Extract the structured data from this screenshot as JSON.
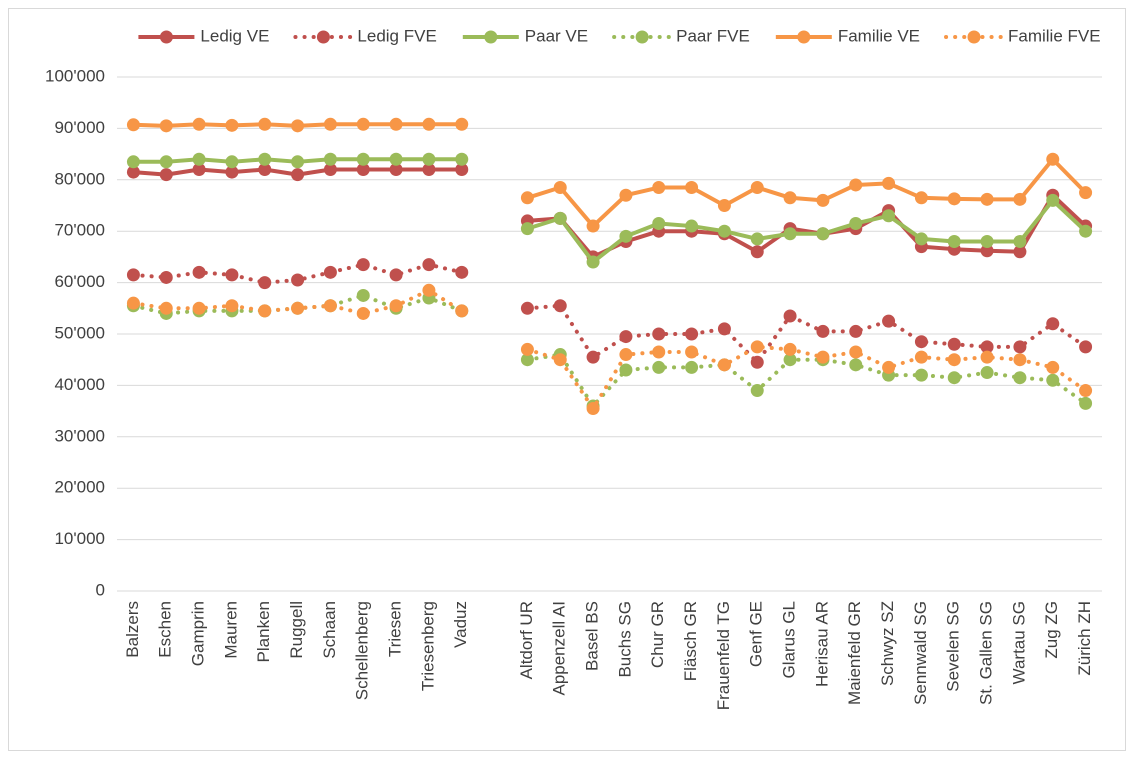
{
  "chart_data": {
    "type": "line",
    "categories": [
      "Balzers",
      "Eschen",
      "Gamprin",
      "Mauren",
      "Planken",
      "Ruggell",
      "Schaan",
      "Schellenberg",
      "Triesen",
      "Triesenberg",
      "Vaduz",
      null,
      "Altdorf UR",
      "Appenzell AI",
      "Basel BS",
      "Buchs SG",
      "Chur GR",
      "Fläsch GR",
      "Frauenfeld TG",
      "Genf GE",
      "Glarus GL",
      "Herisau AR",
      "Maienfeld GR",
      "Schwyz SZ",
      "Sennwald SG",
      "Sevelen SG",
      "St. Gallen SG",
      "Wartau SG",
      "Zug ZG",
      "Zürich ZH"
    ],
    "series": [
      {
        "name": "Ledig VE",
        "color": "#c0504d",
        "line_style": "solid",
        "values": [
          81500,
          81000,
          82000,
          81500,
          82000,
          81000,
          82000,
          82000,
          82000,
          82000,
          82000,
          null,
          72000,
          72500,
          65000,
          68000,
          70000,
          70000,
          69500,
          66000,
          70500,
          69500,
          70500,
          74000,
          67000,
          66500,
          66200,
          66000,
          77000,
          71000
        ]
      },
      {
        "name": "Ledig FVE",
        "color": "#c0504d",
        "line_style": "dotted",
        "values": [
          61500,
          61000,
          62000,
          61500,
          60000,
          60500,
          62000,
          63500,
          61500,
          63500,
          62000,
          null,
          55000,
          55500,
          45500,
          49500,
          50000,
          50000,
          51000,
          44500,
          53500,
          50500,
          50500,
          52500,
          48500,
          48000,
          47500,
          47500,
          52000,
          47500
        ]
      },
      {
        "name": "Paar VE",
        "color": "#9bbb59",
        "line_style": "solid",
        "values": [
          83500,
          83500,
          84000,
          83500,
          84000,
          83500,
          84000,
          84000,
          84000,
          84000,
          84000,
          null,
          70500,
          72500,
          64000,
          69000,
          71500,
          71000,
          70000,
          68500,
          69500,
          69500,
          71500,
          73000,
          68500,
          68000,
          68000,
          68000,
          76000,
          70000
        ]
      },
      {
        "name": "Paar FVE",
        "color": "#9bbb59",
        "line_style": "dotted",
        "values": [
          55500,
          54000,
          54500,
          54500,
          54500,
          55000,
          55500,
          57500,
          55000,
          57000,
          54500,
          null,
          45000,
          46000,
          36000,
          43000,
          43500,
          43500,
          44000,
          39000,
          45000,
          45000,
          44000,
          42000,
          42000,
          41500,
          42500,
          41500,
          41000,
          36500
        ]
      },
      {
        "name": "Familie VE",
        "color": "#f79646",
        "line_style": "solid",
        "values": [
          90700,
          90500,
          90800,
          90600,
          90800,
          90500,
          90800,
          90800,
          90800,
          90800,
          90800,
          null,
          76500,
          78500,
          71000,
          77000,
          78500,
          78500,
          75000,
          78500,
          76500,
          76000,
          79000,
          79300,
          76500,
          76300,
          76200,
          76200,
          84000,
          77500
        ]
      },
      {
        "name": "Familie FVE",
        "color": "#f79646",
        "line_style": "dotted",
        "values": [
          56000,
          55000,
          55000,
          55500,
          54500,
          55000,
          55500,
          54000,
          55500,
          58500,
          54500,
          null,
          47000,
          45000,
          35500,
          46000,
          46500,
          46500,
          44000,
          47500,
          47000,
          45500,
          46500,
          43500,
          45500,
          45000,
          45500,
          45000,
          43500,
          39000
        ]
      }
    ],
    "ylim": [
      0,
      100000
    ],
    "yticks": [
      0,
      {
        "value": 10000,
        "label": "10'000"
      },
      {
        "value": 20000,
        "label": "20'000"
      },
      {
        "value": 30000,
        "label": "30'000"
      },
      {
        "value": 40000,
        "label": "40'000"
      },
      {
        "value": 50000,
        "label": "50'000"
      },
      {
        "value": 60000,
        "label": "60'000"
      },
      {
        "value": 70000,
        "label": "70'000"
      },
      {
        "value": 80000,
        "label": "80'000"
      },
      {
        "value": 90000,
        "label": "90'000"
      },
      {
        "value": 100000,
        "label": "100'000"
      }
    ],
    "grid": true,
    "legend": "top"
  }
}
